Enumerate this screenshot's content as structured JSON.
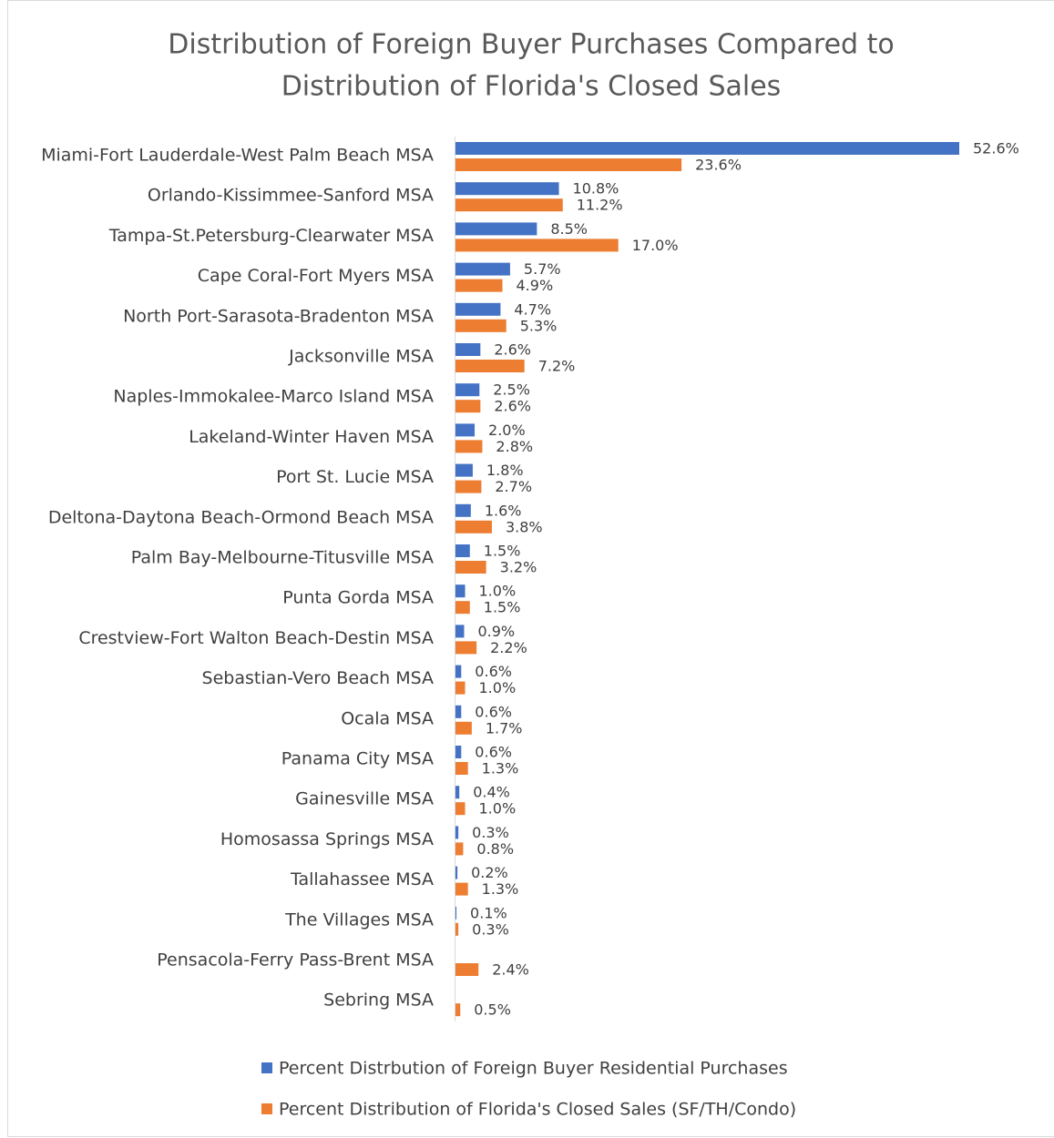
{
  "chart_data": {
    "type": "bar",
    "orientation": "horizontal",
    "title": [
      "Distribution of Foreign Buyer Purchases Compared to",
      "Distribution of Florida's Closed Sales"
    ],
    "categories": [
      "Miami-Fort Lauderdale-West Palm Beach MSA",
      "Orlando-Kissimmee-Sanford MSA",
      "Tampa-St.Petersburg-Clearwater MSA",
      "Cape Coral-Fort Myers MSA",
      "North Port-Sarasota-Bradenton MSA",
      "Jacksonville MSA",
      "Naples-Immokalee-Marco Island MSA",
      "Lakeland-Winter Haven MSA",
      "Port St. Lucie MSA",
      "Deltona-Daytona Beach-Ormond Beach MSA",
      "Palm Bay-Melbourne-Titusville MSA",
      "Punta Gorda MSA",
      "Crestview-Fort Walton Beach-Destin MSA",
      "Sebastian-Vero Beach MSA",
      "Ocala MSA",
      "Panama City MSA",
      "Gainesville MSA",
      "Homosassa Springs MSA",
      "Tallahassee MSA",
      "The Villages MSA",
      "Pensacola-Ferry Pass-Brent MSA",
      "Sebring MSA"
    ],
    "series": [
      {
        "name": "Percent Distrbution of Foreign Buyer Residential Purchases",
        "color": "#4472c4",
        "values": [
          52.6,
          10.8,
          8.5,
          5.7,
          4.7,
          2.6,
          2.5,
          2.0,
          1.8,
          1.6,
          1.5,
          1.0,
          0.9,
          0.6,
          0.6,
          0.6,
          0.4,
          0.3,
          0.2,
          0.1,
          null,
          null
        ],
        "value_labels": [
          "52.6%",
          "10.8%",
          "8.5%",
          "5.7%",
          "4.7%",
          "2.6%",
          "2.5%",
          "2.0%",
          "1.8%",
          "1.6%",
          "1.5%",
          "1.0%",
          "0.9%",
          "0.6%",
          "0.6%",
          "0.6%",
          "0.4%",
          "0.3%",
          "0.2%",
          "0.1%",
          null,
          null
        ]
      },
      {
        "name": "Percent Distribution of Florida's Closed Sales (SF/TH/Condo)",
        "color": "#ed7d31",
        "values": [
          23.6,
          11.2,
          17.0,
          4.9,
          5.3,
          7.2,
          2.6,
          2.8,
          2.7,
          3.8,
          3.2,
          1.5,
          2.2,
          1.0,
          1.7,
          1.3,
          1.0,
          0.8,
          1.3,
          0.3,
          2.4,
          0.5
        ],
        "value_labels": [
          "23.6%",
          "11.2%",
          "17.0%",
          "4.9%",
          "5.3%",
          "7.2%",
          "2.6%",
          "2.8%",
          "2.7%",
          "3.8%",
          "3.2%",
          "1.5%",
          "2.2%",
          "1.0%",
          "1.7%",
          "1.3%",
          "1.0%",
          "0.8%",
          "1.3%",
          "0.3%",
          "2.4%",
          "0.5%"
        ]
      }
    ]
  }
}
